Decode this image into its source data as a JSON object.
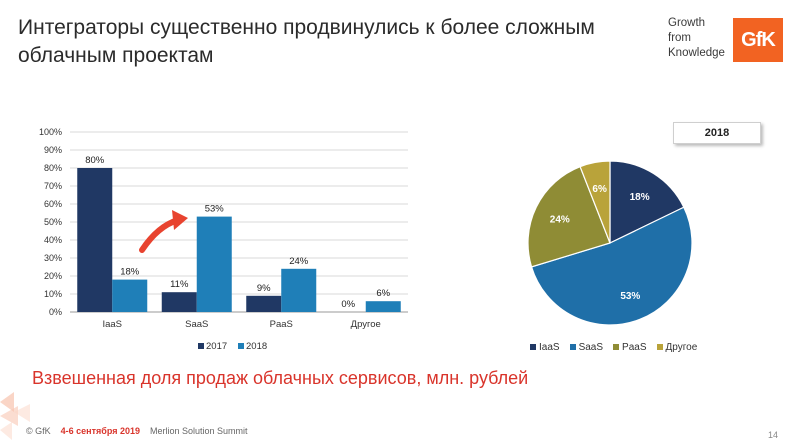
{
  "slide": {
    "title_line1": "Интеграторы существенно продвинулись к более сложным",
    "title_line2": "облачным проектам",
    "brand_line1": "Growth",
    "brand_line2": "from",
    "brand_line3": "Knowledge",
    "brand_logo": "GfK",
    "subtitle": "Взвешенная доля продаж облачных сервисов, млн. рублей",
    "footer_copyright": "© GfK",
    "footer_date": "4-6 сентября 2019",
    "footer_event": "Merlion Solution Summit",
    "page_number": "14"
  },
  "colors": {
    "series_2017": "#203864",
    "series_2018": "#1f7fb8",
    "pie_iaas": "#203864",
    "pie_saas": "#1f6fa8",
    "pie_paas": "#8f8c35",
    "pie_other": "#b9a33a",
    "accent_red": "#d9342b",
    "brand_orange": "#f26322"
  },
  "chart_data": [
    {
      "type": "bar",
      "categories": [
        "IaaS",
        "SaaS",
        "PaaS",
        "Другое"
      ],
      "series": [
        {
          "name": "2017",
          "values": [
            80,
            11,
            9,
            0
          ]
        },
        {
          "name": "2018",
          "values": [
            18,
            53,
            24,
            6
          ]
        }
      ],
      "value_labels": [
        [
          "80%",
          "11%",
          "9%",
          "0%"
        ],
        [
          "18%",
          "53%",
          "24%",
          "6%"
        ]
      ],
      "y_ticks": [
        "0%",
        "10%",
        "20%",
        "30%",
        "40%",
        "50%",
        "60%",
        "70%",
        "80%",
        "90%",
        "100%"
      ],
      "ylim": [
        0,
        100
      ],
      "grid": true,
      "legend_position": "bottom",
      "annotation": "arrow-up-to-saas-2018"
    },
    {
      "type": "pie",
      "title": "2018",
      "labels": [
        "IaaS",
        "SaaS",
        "PaaS",
        "Другое"
      ],
      "values": [
        18,
        53,
        24,
        6
      ],
      "value_labels": [
        "18%",
        "53%",
        "24%",
        "6%"
      ],
      "legend_position": "bottom"
    }
  ]
}
